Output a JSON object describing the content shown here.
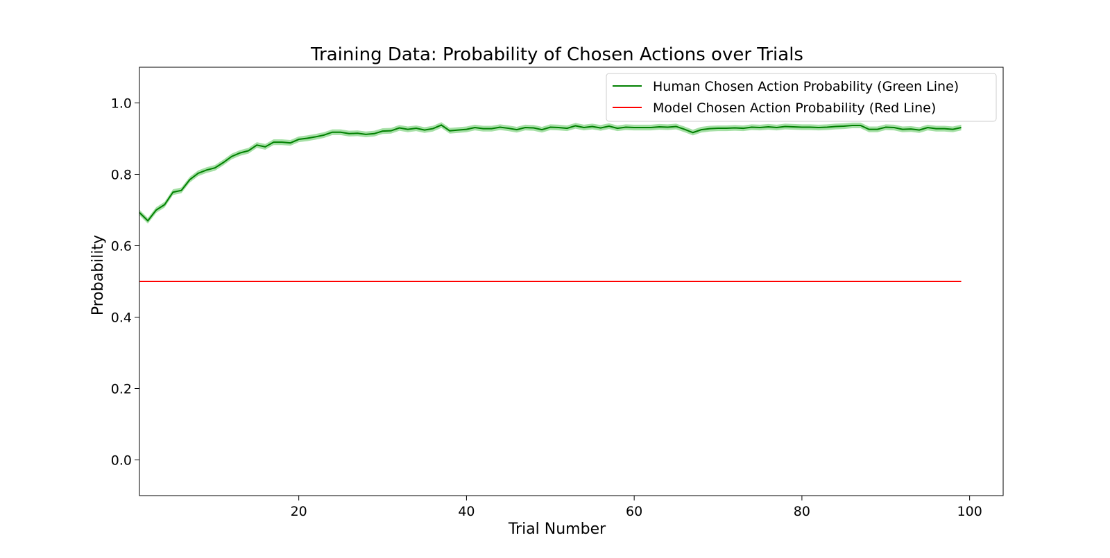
{
  "chart_data": {
    "type": "line",
    "title": "Training Data: Probability of Chosen Actions over Trials",
    "xlabel": "Trial Number",
    "ylabel": "Probability",
    "xlim": [
      1,
      104
    ],
    "ylim": [
      -0.1,
      1.1
    ],
    "xticks": [
      20,
      40,
      60,
      80,
      100
    ],
    "xtick_labels": [
      "20",
      "40",
      "60",
      "80",
      "100"
    ],
    "yticks": [
      0.0,
      0.2,
      0.4,
      0.6,
      0.8,
      1.0
    ],
    "ytick_labels": [
      "0.0",
      "0.2",
      "0.4",
      "0.6",
      "0.8",
      "1.0"
    ],
    "grid": false,
    "legend_position": "top-right",
    "x": [
      1,
      2,
      3,
      4,
      5,
      6,
      7,
      8,
      9,
      10,
      11,
      12,
      13,
      14,
      15,
      16,
      17,
      18,
      19,
      20,
      21,
      22,
      23,
      24,
      25,
      26,
      27,
      28,
      29,
      30,
      31,
      32,
      33,
      34,
      35,
      36,
      37,
      38,
      39,
      40,
      41,
      42,
      43,
      44,
      45,
      46,
      47,
      48,
      49,
      50,
      51,
      52,
      53,
      54,
      55,
      56,
      57,
      58,
      59,
      60,
      61,
      62,
      63,
      64,
      65,
      66,
      67,
      68,
      69,
      70,
      71,
      72,
      73,
      74,
      75,
      76,
      77,
      78,
      79,
      80,
      81,
      82,
      83,
      84,
      85,
      86,
      87,
      88,
      89,
      90,
      91,
      92,
      93,
      94,
      95,
      96,
      97,
      98,
      99
    ],
    "series": [
      {
        "name": "Human Chosen Action Probability (Green Line)",
        "color": "#008000",
        "band_color": "#90d890",
        "band_halfwidth": 0.008,
        "values": [
          0.693,
          0.67,
          0.7,
          0.715,
          0.75,
          0.755,
          0.785,
          0.803,
          0.812,
          0.818,
          0.833,
          0.85,
          0.86,
          0.866,
          0.882,
          0.877,
          0.89,
          0.89,
          0.888,
          0.898,
          0.901,
          0.905,
          0.91,
          0.918,
          0.918,
          0.914,
          0.915,
          0.912,
          0.914,
          0.921,
          0.922,
          0.93,
          0.926,
          0.929,
          0.924,
          0.928,
          0.938,
          0.922,
          0.924,
          0.926,
          0.931,
          0.928,
          0.928,
          0.932,
          0.929,
          0.925,
          0.931,
          0.93,
          0.925,
          0.932,
          0.931,
          0.929,
          0.936,
          0.931,
          0.934,
          0.93,
          0.935,
          0.929,
          0.932,
          0.931,
          0.931,
          0.931,
          0.933,
          0.932,
          0.934,
          0.926,
          0.917,
          0.925,
          0.928,
          0.929,
          0.929,
          0.93,
          0.929,
          0.932,
          0.931,
          0.933,
          0.931,
          0.934,
          0.933,
          0.932,
          0.932,
          0.931,
          0.932,
          0.934,
          0.935,
          0.937,
          0.937,
          0.926,
          0.926,
          0.932,
          0.931,
          0.926,
          0.927,
          0.924,
          0.931,
          0.928,
          0.928,
          0.926,
          0.931
        ]
      },
      {
        "name": "Model Chosen Action Probability (Red Line)",
        "color": "#ff0000",
        "values": [
          0.5,
          0.5,
          0.5,
          0.5,
          0.5,
          0.5,
          0.5,
          0.5,
          0.5,
          0.5,
          0.5,
          0.5,
          0.5,
          0.5,
          0.5,
          0.5,
          0.5,
          0.5,
          0.5,
          0.5,
          0.5,
          0.5,
          0.5,
          0.5,
          0.5,
          0.5,
          0.5,
          0.5,
          0.5,
          0.5,
          0.5,
          0.5,
          0.5,
          0.5,
          0.5,
          0.5,
          0.5,
          0.5,
          0.5,
          0.5,
          0.5,
          0.5,
          0.5,
          0.5,
          0.5,
          0.5,
          0.5,
          0.5,
          0.5,
          0.5,
          0.5,
          0.5,
          0.5,
          0.5,
          0.5,
          0.5,
          0.5,
          0.5,
          0.5,
          0.5,
          0.5,
          0.5,
          0.5,
          0.5,
          0.5,
          0.5,
          0.5,
          0.5,
          0.5,
          0.5,
          0.5,
          0.5,
          0.5,
          0.5,
          0.5,
          0.5,
          0.5,
          0.5,
          0.5,
          0.5,
          0.5,
          0.5,
          0.5,
          0.5,
          0.5,
          0.5,
          0.5,
          0.5,
          0.5,
          0.5,
          0.5,
          0.5,
          0.5,
          0.5,
          0.5,
          0.5,
          0.5,
          0.5,
          0.5
        ]
      }
    ]
  }
}
